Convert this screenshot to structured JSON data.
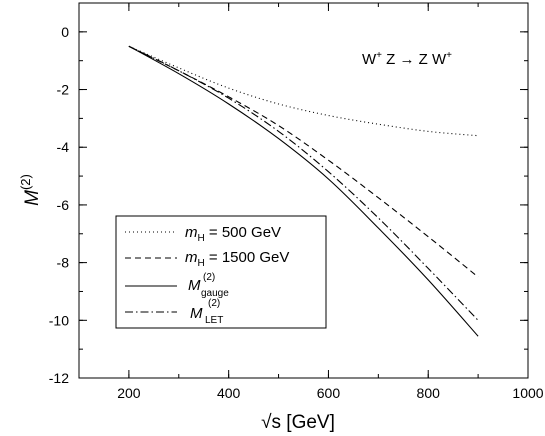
{
  "chart_data": {
    "type": "line",
    "title": "",
    "xlabel": "√s [GeV]",
    "ylabel": "M",
    "ylabel_sup": "(2)",
    "xlim": [
      100,
      1000
    ],
    "ylim": [
      -12,
      1
    ],
    "x_major_ticks": [
      200,
      400,
      600,
      800,
      1000
    ],
    "x_tick_labels": [
      "200",
      "400",
      "600",
      "800",
      "1000"
    ],
    "x_minor_step": 100,
    "y_major_ticks": [
      0,
      -2,
      -4,
      -6,
      -8,
      -10,
      -12
    ],
    "y_tick_labels": [
      "0",
      "-2",
      "-4",
      "-6",
      "-8",
      "-10",
      "-12"
    ],
    "y_minor_step": 1,
    "grid": false,
    "annotation": {
      "text_parts": [
        "W",
        "+",
        " Z → Z W",
        "+"
      ]
    },
    "legend_placement": "bottom-left",
    "series": [
      {
        "name": "m",
        "sub": "H",
        "suffix": " = 500 GeV",
        "style": "dotted",
        "x": [
          200,
          300,
          400,
          500,
          600,
          700,
          800,
          900
        ],
        "y": [
          -0.5,
          -1.25,
          -1.95,
          -2.5,
          -2.9,
          -3.2,
          -3.45,
          -3.6
        ]
      },
      {
        "name": "m",
        "sub": "H",
        "suffix": " = 1500 GeV",
        "style": "dashed",
        "x": [
          200,
          300,
          400,
          500,
          600,
          700,
          800,
          900
        ],
        "y": [
          -0.5,
          -1.35,
          -2.25,
          -3.25,
          -4.45,
          -5.75,
          -7.1,
          -8.5
        ]
      },
      {
        "name": "M",
        "sup": "(2)",
        "sub": "gauge",
        "style": "solid",
        "x": [
          200,
          300,
          400,
          500,
          600,
          700,
          800,
          900
        ],
        "y": [
          -0.5,
          -1.45,
          -2.5,
          -3.7,
          -5.1,
          -6.8,
          -8.6,
          -10.55
        ]
      },
      {
        "name": "M",
        "sup": "(2)",
        "sub": "LET",
        "style": "dashdot",
        "x": [
          200,
          300,
          400,
          500,
          600,
          700,
          800,
          900
        ],
        "y": [
          -0.5,
          -1.35,
          -2.3,
          -3.45,
          -4.85,
          -6.45,
          -8.2,
          -10.0
        ]
      }
    ]
  }
}
